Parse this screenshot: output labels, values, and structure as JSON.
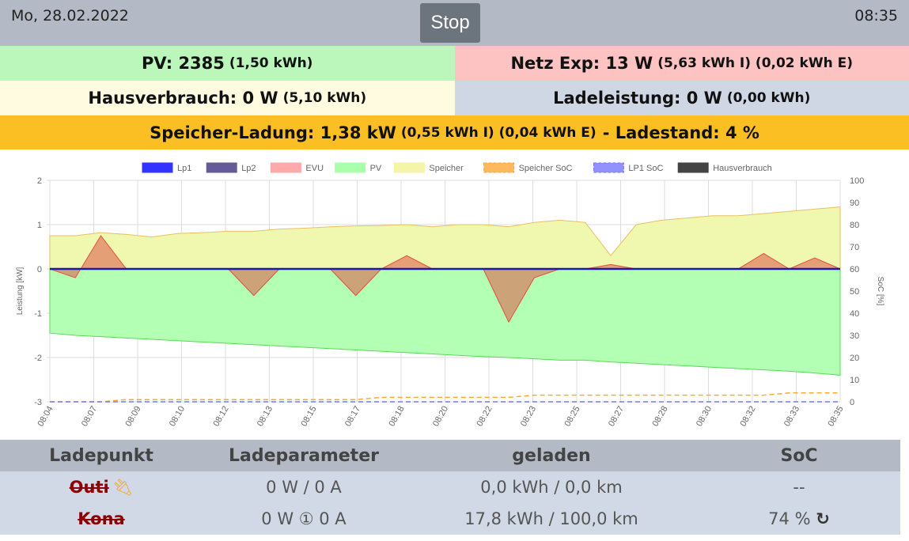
{
  "header": {
    "date": "Mo, 28.02.2022",
    "stop_label": "Stop",
    "time": "08:35"
  },
  "status": {
    "pv_label": "PV: 2385",
    "pv_energy": "(1,50 kWh)",
    "netz_label": "Netz Exp: 13 W",
    "netz_energy": "(5,63 kWh I) (0,02 kWh E)",
    "haus_label": "Hausverbrauch: 0 W",
    "haus_energy": "(5,10 kWh)",
    "lade_label": "Ladeleistung: 0 W",
    "lade_energy": "(0,00 kWh)",
    "speicher_label": "Speicher-Ladung: 1,38 kW",
    "speicher_energy": "(0,55 kWh I) (0,04 kWh E)",
    "speicher_soc": "- Ladestand: 4 %"
  },
  "chart_data": {
    "type": "area",
    "legend": [
      "Lp1",
      "Lp2",
      "EVU",
      "PV",
      "Speicher",
      "Speicher SoC",
      "LP1 SoC",
      "Hausverbrauch"
    ],
    "legend_colors": [
      "#3333ff",
      "#665b99",
      "#ffaaaa",
      "#aaffaa",
      "#f5f5aa",
      "#ffa833",
      "#7777ff",
      "#444444"
    ],
    "ylabel": "Leistung [kW]",
    "y2label": "SoC [%]",
    "ylim": [
      -3,
      2
    ],
    "y2lim": [
      0,
      100
    ],
    "yticks": [
      "2",
      "1",
      "0",
      "-1",
      "-2",
      "-3"
    ],
    "y2ticks": [
      "100",
      "90",
      "80",
      "70",
      "60",
      "50",
      "40",
      "30",
      "20",
      "10",
      "0"
    ],
    "xticks": [
      "08:04",
      "08:07",
      "08:09",
      "08:10",
      "08:12",
      "08:13",
      "08:15",
      "08:17",
      "08:18",
      "08:20",
      "08:22",
      "08:23",
      "08:25",
      "08:27",
      "08:28",
      "08:30",
      "08:32",
      "08:33",
      "08:35"
    ],
    "series": [
      {
        "name": "Speicher",
        "values": [
          0.75,
          0.75,
          0.82,
          0.78,
          0.72,
          0.8,
          0.82,
          0.85,
          0.85,
          0.9,
          0.92,
          0.95,
          0.97,
          0.98,
          1.0,
          0.95,
          1.0,
          1.0,
          0.95,
          1.05,
          1.1,
          1.05,
          0.3,
          1.0,
          1.1,
          1.15,
          1.2,
          1.2,
          1.25,
          1.3,
          1.35,
          1.4
        ]
      },
      {
        "name": "EVU",
        "values": [
          0,
          -0.2,
          0.75,
          0,
          0,
          0,
          0,
          0,
          -0.6,
          0,
          0,
          0,
          -0.6,
          0,
          0.3,
          0,
          0,
          0,
          -1.2,
          -0.2,
          0,
          0,
          0.1,
          0,
          0,
          0,
          0,
          0,
          0.35,
          0,
          0.25,
          0
        ]
      },
      {
        "name": "PV",
        "values": [
          -1.45,
          -1.5,
          -1.53,
          -1.56,
          -1.59,
          -1.62,
          -1.65,
          -1.68,
          -1.71,
          -1.74,
          -1.77,
          -1.8,
          -1.83,
          -1.86,
          -1.89,
          -1.92,
          -1.95,
          -1.98,
          -2.0,
          -2.03,
          -2.06,
          -2.06,
          -2.1,
          -2.13,
          -2.16,
          -2.19,
          -2.22,
          -2.25,
          -2.28,
          -2.31,
          -2.35,
          -2.4
        ]
      },
      {
        "name": "Speicher SoC",
        "values": [
          0,
          0,
          0,
          1,
          1,
          1,
          1,
          1,
          1,
          1,
          1,
          1,
          1,
          2,
          2,
          2,
          2,
          2,
          2,
          3,
          3,
          3,
          3,
          3,
          3,
          3,
          3,
          3,
          3,
          4,
          4,
          4
        ]
      },
      {
        "name": "LP1 SoC",
        "values": [
          0,
          0,
          0,
          0,
          0,
          0,
          0,
          0,
          0,
          0,
          0,
          0,
          0,
          0,
          0,
          0,
          0,
          0,
          0,
          0,
          0,
          0,
          0,
          0,
          0,
          0,
          0,
          0,
          0,
          0,
          0,
          0
        ]
      },
      {
        "name": "Lp1",
        "values": [
          0,
          0,
          0,
          0,
          0,
          0,
          0,
          0,
          0,
          0,
          0,
          0,
          0,
          0,
          0,
          0,
          0,
          0,
          0,
          0,
          0,
          0,
          0,
          0,
          0,
          0,
          0,
          0,
          0,
          0,
          0,
          0
        ]
      }
    ]
  },
  "table": {
    "headers": [
      "Ladepunkt",
      "Ladeparameter",
      "geladen",
      "SoC"
    ],
    "rows": [
      {
        "name": "Outi",
        "params": "0 W / 0 A",
        "charged": "0,0 kWh / 0,0 km",
        "soc": "--"
      },
      {
        "name": "Kona",
        "params": "0 W ① 0 A",
        "charged": "17,8 kWh / 100,0 km",
        "soc": "74 %"
      }
    ]
  }
}
